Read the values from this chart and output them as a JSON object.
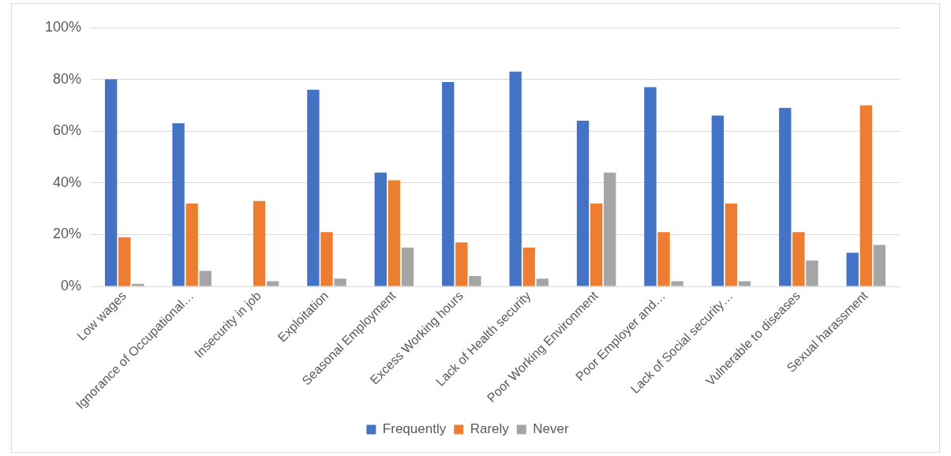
{
  "chart_data": {
    "type": "bar",
    "categories": [
      "Low wages",
      "Ignorance of Occupational…",
      "Insecurity in job",
      "Exploitation",
      "Seasonal Employment",
      "Excess Working hours",
      "Lack of Health security",
      "Poor Working Environment",
      "Poor Employer and…",
      "Lack of Social security…",
      "Vulnerable to diseases",
      "Sexual harassment"
    ],
    "series": [
      {
        "name": "Frequently",
        "color": "#4472c4",
        "values": [
          80,
          63,
          0,
          76,
          44,
          79,
          83,
          64,
          77,
          66,
          69,
          13
        ]
      },
      {
        "name": "Rarely",
        "color": "#ed7d31",
        "values": [
          19,
          32,
          33,
          21,
          41,
          17,
          15,
          32,
          21,
          32,
          21,
          70
        ]
      },
      {
        "name": "Never",
        "color": "#a5a5a5",
        "values": [
          1,
          6,
          2,
          3,
          15,
          4,
          3,
          44,
          2,
          2,
          10,
          16
        ]
      }
    ],
    "ylim": [
      0,
      100
    ],
    "yticks": [
      {
        "value": 0,
        "label": "0%"
      },
      {
        "value": 20,
        "label": "20%"
      },
      {
        "value": 40,
        "label": "40%"
      },
      {
        "value": 60,
        "label": "60%"
      },
      {
        "value": 80,
        "label": "80%"
      },
      {
        "value": 100,
        "label": "100%"
      }
    ],
    "grid": "y",
    "legend": "bottom"
  }
}
